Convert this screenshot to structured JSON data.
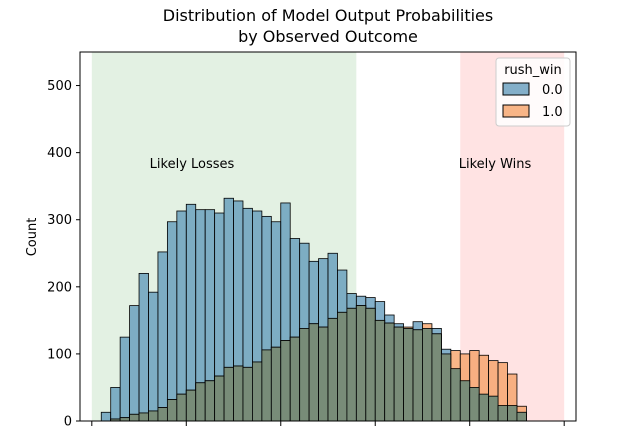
{
  "chart_data": {
    "type": "histogram",
    "title_line1": "Distribution of Model Output Probabilities",
    "title_line2": "by Observed Outcome",
    "xlabel": "",
    "ylabel": "Count",
    "xlim": [
      -0.025,
      1.025
    ],
    "ylim": [
      0,
      550
    ],
    "yticks": [
      0,
      100,
      200,
      300,
      400,
      500
    ],
    "xticks": [
      0,
      0.2,
      0.4,
      0.6,
      0.8,
      1.0
    ],
    "bin_start": 0.02,
    "bin_width": 0.02,
    "regions": [
      {
        "label": "Likely Losses",
        "x0": 0.0,
        "x1": 0.56,
        "color": "#c8e4c8"
      },
      {
        "label": "Likely Wins",
        "x0": 0.78,
        "x1": 1.0,
        "color": "#ffc8c8"
      }
    ],
    "legend": {
      "title": "rush_win",
      "position": "top-right"
    },
    "series": [
      {
        "name": "0.0",
        "color": "#5b96b8",
        "values": [
          13,
          50,
          125,
          172,
          220,
          192,
          252,
          297,
          313,
          323,
          315,
          315,
          310,
          332,
          328,
          317,
          313,
          305,
          297,
          325,
          272,
          265,
          238,
          242,
          250,
          225,
          190,
          186,
          184,
          178,
          158,
          145,
          138,
          148,
          138,
          138,
          107,
          78,
          60,
          50,
          40,
          37,
          23,
          23,
          13
        ]
      },
      {
        "name": "1.0",
        "color": "#f59d60",
        "values": [
          0,
          3,
          5,
          10,
          12,
          15,
          20,
          32,
          40,
          46,
          57,
          60,
          67,
          80,
          82,
          80,
          88,
          106,
          110,
          120,
          125,
          138,
          145,
          140,
          153,
          162,
          168,
          172,
          168,
          150,
          146,
          140,
          140,
          136,
          145,
          130,
          100,
          105,
          100,
          105,
          98,
          90,
          87,
          70,
          22
        ]
      }
    ]
  }
}
